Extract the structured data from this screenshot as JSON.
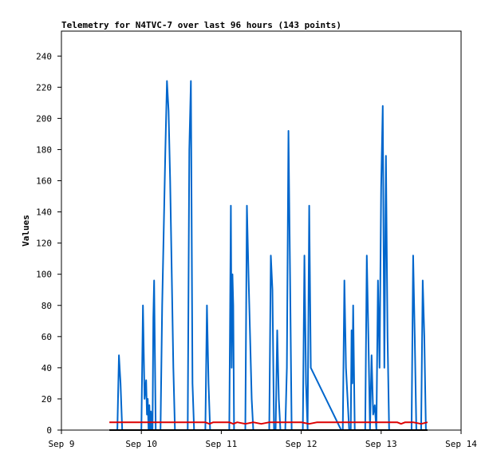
{
  "chart_data": {
    "type": "line",
    "title": "Telemetry for N4TVC-7 over last 96 hours (143 points)",
    "xlabel": "",
    "ylabel": "Values",
    "x_ticks": [
      "Sep 9",
      "Sep 10",
      "Sep 11",
      "Sep 12",
      "Sep 13",
      "Sep 14"
    ],
    "x_range_days": [
      9,
      14
    ],
    "y_ticks": [
      0,
      20,
      40,
      60,
      80,
      100,
      120,
      140,
      160,
      180,
      200,
      220,
      240
    ],
    "ylim": [
      0,
      256
    ],
    "grid": false,
    "legend": "none",
    "colors": {
      "series1": "#0066cc",
      "series2": "#dd0000",
      "series3": "#000000",
      "frame": "#000000"
    },
    "series": [
      {
        "color": "#0066cc",
        "x": [
          9.7,
          9.72,
          9.74,
          9.76,
          9.78,
          10.0,
          10.02,
          10.04,
          10.06,
          10.07,
          10.08,
          10.09,
          10.1,
          10.11,
          10.12,
          10.13,
          10.14,
          10.15,
          10.16,
          10.18,
          10.2,
          10.22,
          10.24,
          10.26,
          10.28,
          10.3,
          10.32,
          10.34,
          10.36,
          10.38,
          10.4,
          10.42,
          10.44,
          10.46,
          10.48,
          10.5,
          10.52,
          10.54,
          10.56,
          10.58,
          10.6,
          10.62,
          10.64,
          10.66,
          10.68,
          10.8,
          10.82,
          10.84,
          10.86,
          11.1,
          11.12,
          11.13,
          11.14,
          11.15,
          11.16,
          11.18,
          11.3,
          11.32,
          11.34,
          11.36,
          11.38,
          11.4,
          11.42,
          11.6,
          11.62,
          11.64,
          11.66,
          11.68,
          11.7,
          11.72,
          11.74,
          11.76,
          11.8,
          11.82,
          11.84,
          11.86,
          11.88,
          12.0,
          12.02,
          12.04,
          12.06,
          12.08,
          12.1,
          12.12,
          12.5,
          12.52,
          12.54,
          12.56,
          12.6,
          12.62,
          12.63,
          12.64,
          12.65,
          12.66,
          12.67,
          12.68,
          12.8,
          12.82,
          12.84,
          12.86,
          12.88,
          12.9,
          12.92,
          12.94,
          12.96,
          12.98,
          13.0,
          13.02,
          13.04,
          13.06,
          13.08,
          13.1,
          13.12,
          13.14,
          13.38,
          13.4,
          13.42,
          13.44,
          13.5,
          13.52,
          13.54,
          13.56
        ],
        "y": [
          0,
          48,
          30,
          0,
          0,
          0,
          80,
          20,
          32,
          10,
          20,
          0,
          16,
          0,
          12,
          0,
          0,
          72,
          96,
          0,
          0,
          0,
          0,
          80,
          130,
          180,
          224,
          205,
          160,
          100,
          40,
          0,
          0,
          0,
          0,
          0,
          0,
          0,
          0,
          0,
          180,
          224,
          30,
          0,
          0,
          0,
          80,
          30,
          0,
          0,
          144,
          40,
          100,
          80,
          0,
          0,
          0,
          144,
          100,
          60,
          20,
          0,
          0,
          0,
          112,
          90,
          0,
          0,
          64,
          20,
          0,
          0,
          0,
          40,
          192,
          100,
          0,
          0,
          0,
          112,
          30,
          0,
          144,
          40,
          0,
          0,
          96,
          40,
          0,
          0,
          64,
          30,
          80,
          40,
          0,
          0,
          0,
          112,
          60,
          0,
          48,
          10,
          16,
          0,
          96,
          40,
          156,
          208,
          40,
          176,
          60,
          0,
          0,
          0,
          0,
          112,
          60,
          0,
          0,
          96,
          60,
          0
        ]
      },
      {
        "color": "#dd0000",
        "x": [
          9.6,
          9.8,
          10.0,
          10.2,
          10.4,
          10.6,
          10.8,
          10.85,
          10.9,
          11.0,
          11.1,
          11.15,
          11.2,
          11.3,
          11.4,
          11.5,
          11.6,
          11.8,
          12.0,
          12.1,
          12.2,
          12.4,
          12.6,
          12.8,
          13.0,
          13.2,
          13.25,
          13.3,
          13.4,
          13.5,
          13.58
        ],
        "y": [
          5,
          5,
          5,
          5,
          5,
          5,
          5,
          4,
          5,
          5,
          5,
          4,
          5,
          4,
          5,
          4,
          5,
          5,
          5,
          4,
          5,
          5,
          5,
          5,
          5,
          5,
          4,
          5,
          5,
          4,
          5
        ]
      },
      {
        "color": "#000000",
        "x": [
          9.6,
          13.58
        ],
        "y": [
          0,
          0
        ]
      }
    ]
  }
}
